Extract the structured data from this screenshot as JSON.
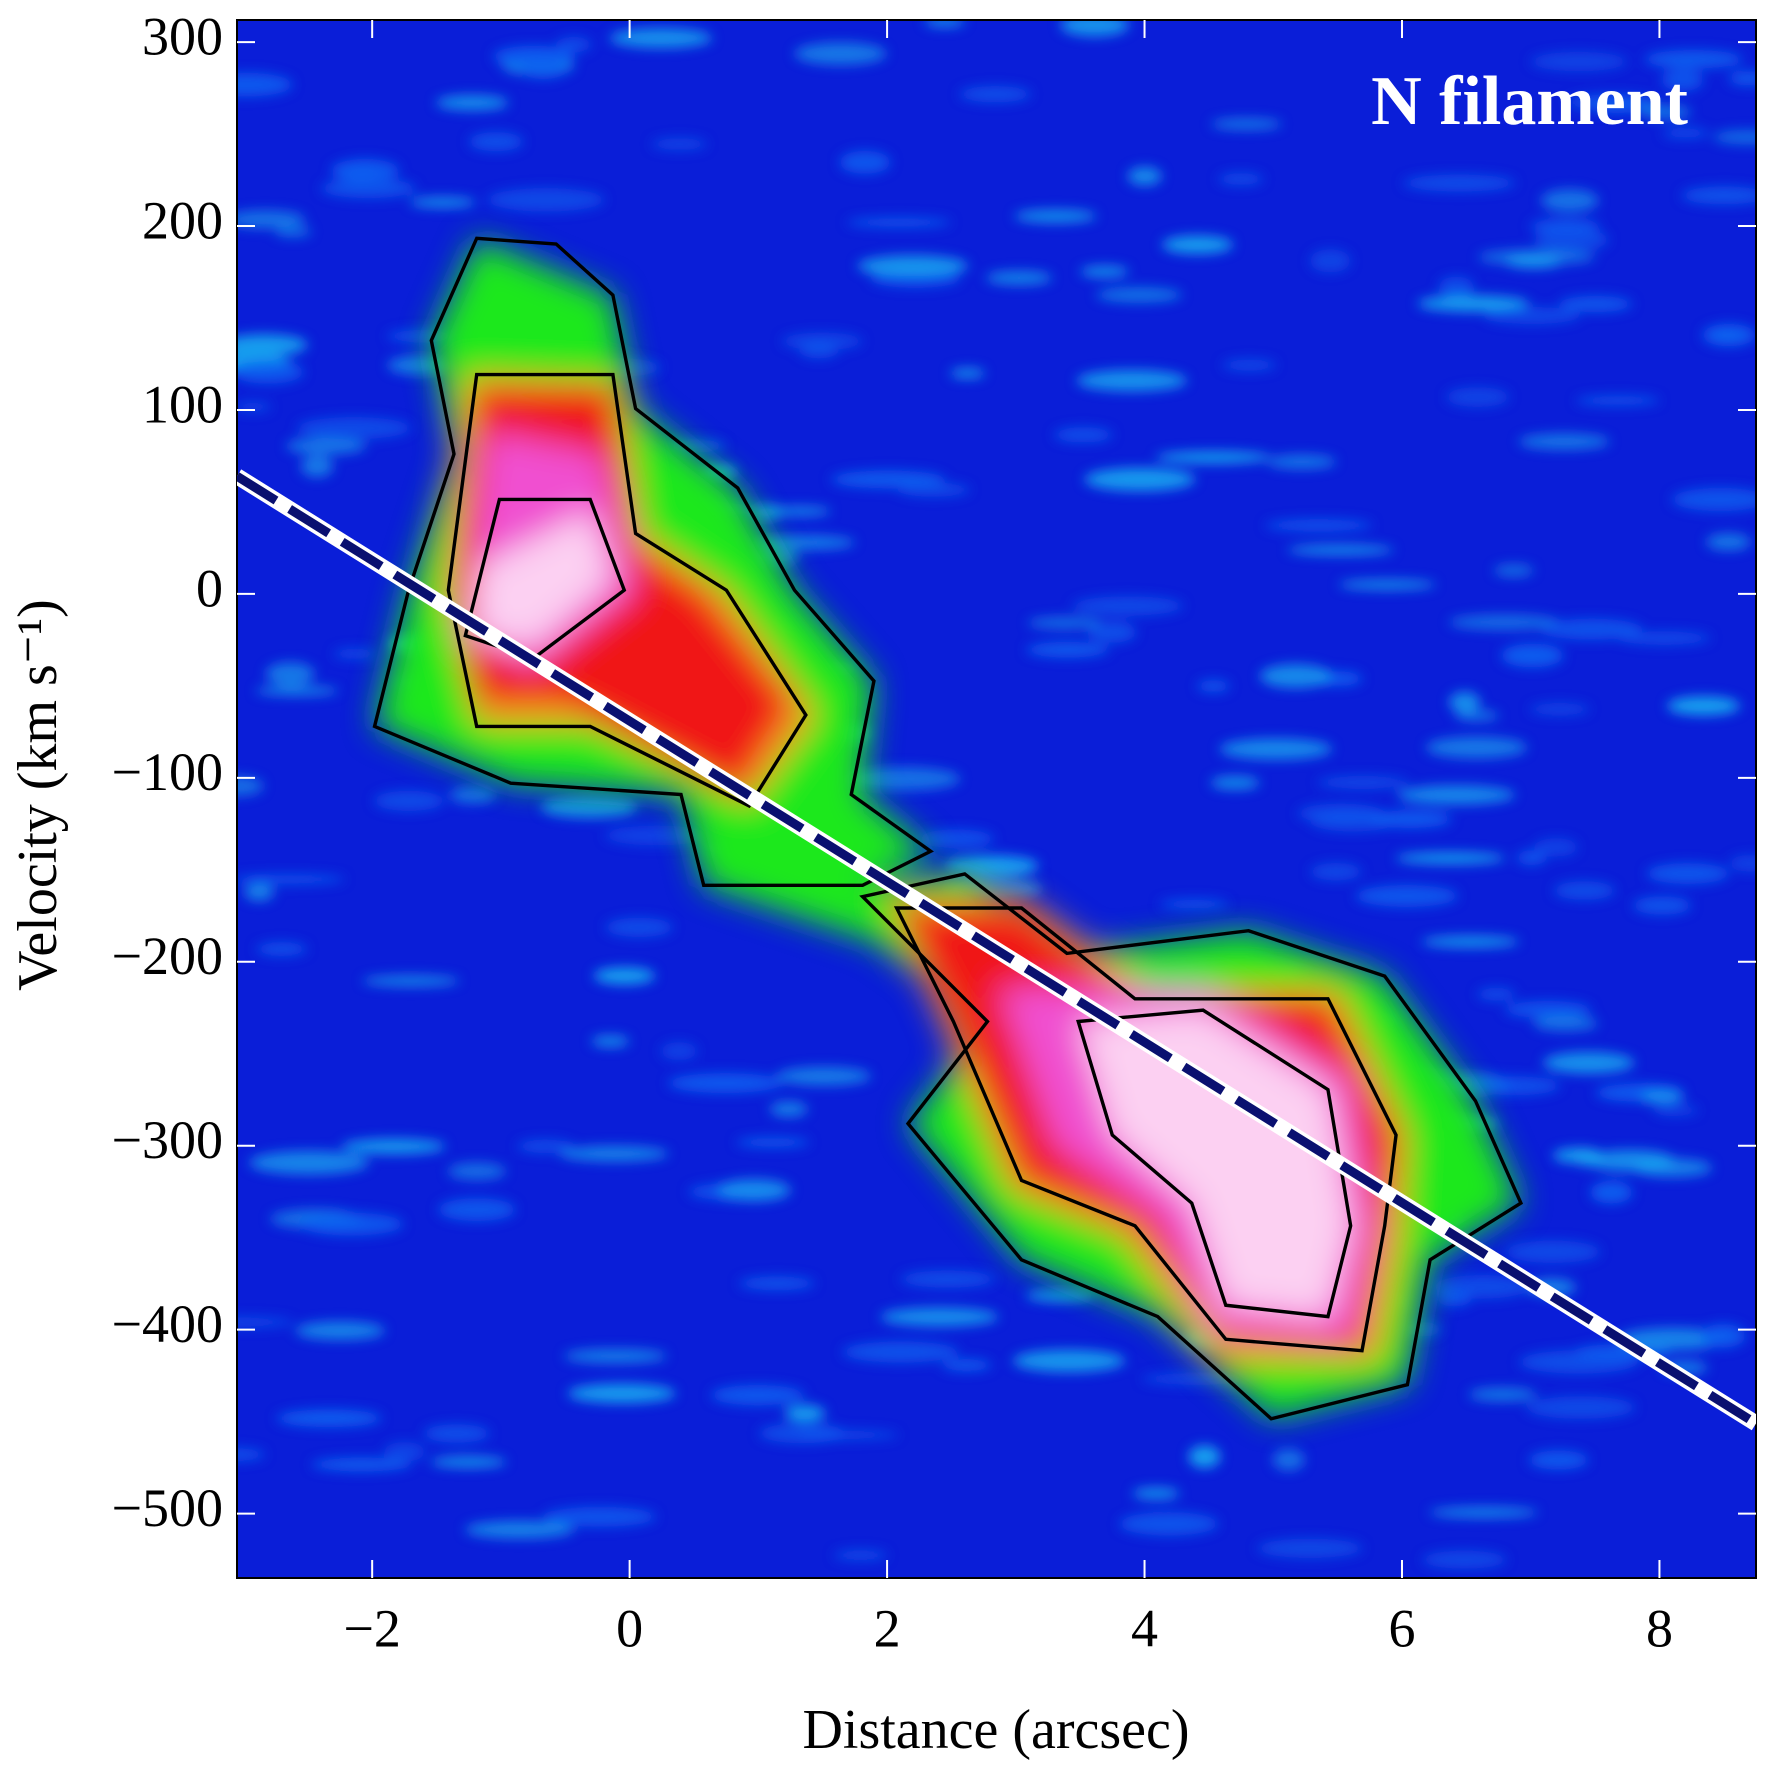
{
  "chart_data": {
    "type": "line",
    "annotation": "N filament",
    "xlabel": "Distance (arcsec)",
    "ylabel": "Velocity (km s⁻¹)",
    "xlim": [
      -3.05,
      8.75
    ],
    "ylim": [
      -535,
      312
    ],
    "xticks": [
      {
        "value": -2,
        "label": "−2"
      },
      0,
      2,
      4,
      6,
      8
    ],
    "yticks": [
      300,
      200,
      100,
      0,
      {
        "value": -100,
        "label": "−100"
      },
      {
        "value": -200,
        "label": "−200"
      },
      {
        "value": -300,
        "label": "−300"
      },
      {
        "value": -400,
        "label": "−400"
      },
      {
        "value": -500,
        "label": "−500"
      }
    ],
    "series": [
      {
        "color": "#0a1070",
        "x": [
          -3.05,
          8.75
        ],
        "values": [
          64,
          -451
        ]
      }
    ]
  }
}
